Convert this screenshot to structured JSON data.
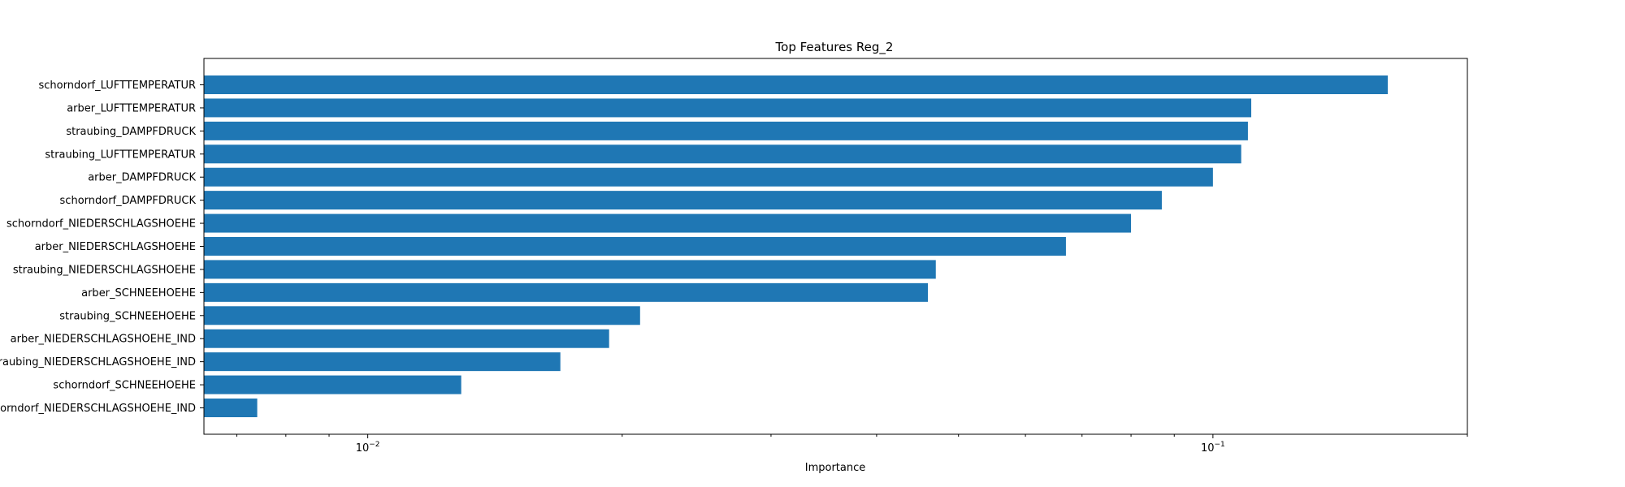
{
  "chart_data": {
    "type": "bar",
    "orientation": "horizontal",
    "title": "Top Features Reg_2",
    "xlabel": "Importance",
    "ylabel": "",
    "xscale": "log",
    "xlim": [
      0.0064,
      0.2
    ],
    "x_tick_labels": [
      {
        "value": 0.01,
        "base": "10",
        "exp": "−2"
      },
      {
        "value": 0.1,
        "base": "10",
        "exp": "−1"
      }
    ],
    "grid": false,
    "legend": "none",
    "bar_color": "#1f77b4",
    "categories": [
      "schorndorf_LUFTTEMPERATUR",
      "arber_LUFTTEMPERATUR",
      "straubing_DAMPFDRUCK",
      "straubing_LUFTTEMPERATUR",
      "arber_DAMPFDRUCK",
      "schorndorf_DAMPFDRUCK",
      "schorndorf_NIEDERSCHLAGSHOEHE",
      "arber_NIEDERSCHLAGSHOEHE",
      "straubing_NIEDERSCHLAGSHOEHE",
      "arber_SCHNEEHOEHE",
      "straubing_SCHNEEHOEHE",
      "arber_NIEDERSCHLAGSHOEHE_IND",
      "straubing_NIEDERSCHLAGSHOEHE_IND",
      "schorndorf_SCHNEEHOEHE",
      "schorndorf_NIEDERSCHLAGSHOEHE_IND"
    ],
    "values": [
      0.161,
      0.111,
      0.11,
      0.108,
      0.1,
      0.087,
      0.08,
      0.067,
      0.047,
      0.046,
      0.021,
      0.0193,
      0.0169,
      0.0129,
      0.0074
    ]
  }
}
